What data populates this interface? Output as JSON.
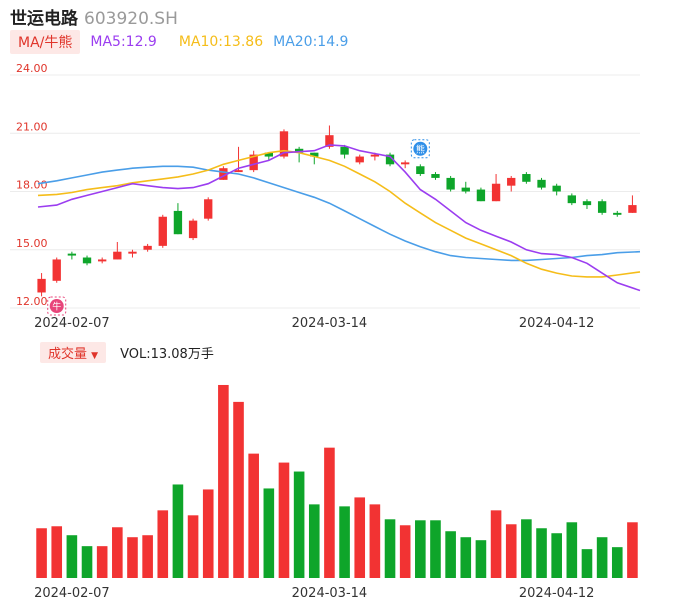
{
  "header": {
    "name": "世运电路",
    "code": "603920.SH"
  },
  "legend": {
    "ma_button": "MA/牛熊",
    "ma5": "MA5:12.9",
    "ma10": "MA10:13.86",
    "ma20": "MA20:14.9"
  },
  "volume": {
    "button": "成交量",
    "label": "VOL:13.08万手"
  },
  "markers": {
    "buy": "牛",
    "sell": "熊"
  },
  "colors": {
    "up": "#f23333",
    "down": "#0ea52a",
    "ma5": "#9b3df0",
    "ma10": "#f5bd1a",
    "ma20": "#4a9ee8",
    "axis_label": "#e0352b"
  },
  "chart_data": [
    {
      "type": "candlestick",
      "y_ticks": [
        "24.00",
        "21.00",
        "18.00",
        "15.00",
        "12.00"
      ],
      "ylim": [
        12,
        24
      ],
      "x_tick_labels": [
        {
          "label": "2024-02-07",
          "index": 2
        },
        {
          "label": "2024-03-14",
          "index": 19
        },
        {
          "label": "2024-04-12",
          "index": 34
        }
      ],
      "candles": [
        {
          "o": 12.8,
          "c": 13.5,
          "h": 13.8,
          "l": 12.6
        },
        {
          "o": 13.4,
          "c": 14.5,
          "h": 14.6,
          "l": 13.3
        },
        {
          "o": 14.8,
          "c": 14.7,
          "h": 14.9,
          "l": 14.5
        },
        {
          "o": 14.6,
          "c": 14.3,
          "h": 14.7,
          "l": 14.2
        },
        {
          "o": 14.4,
          "c": 14.5,
          "h": 14.6,
          "l": 14.3
        },
        {
          "o": 14.5,
          "c": 14.9,
          "h": 15.4,
          "l": 14.5
        },
        {
          "o": 14.8,
          "c": 14.9,
          "h": 15.0,
          "l": 14.6
        },
        {
          "o": 15.0,
          "c": 15.2,
          "h": 15.3,
          "l": 14.9
        },
        {
          "o": 15.2,
          "c": 16.7,
          "h": 16.8,
          "l": 15.1
        },
        {
          "o": 17.0,
          "c": 15.8,
          "h": 17.4,
          "l": 15.8
        },
        {
          "o": 15.6,
          "c": 16.5,
          "h": 16.6,
          "l": 15.5
        },
        {
          "o": 16.6,
          "c": 17.6,
          "h": 17.7,
          "l": 16.5
        },
        {
          "o": 18.6,
          "c": 19.2,
          "h": 19.3,
          "l": 18.6
        },
        {
          "o": 19.0,
          "c": 19.1,
          "h": 20.3,
          "l": 19.0
        },
        {
          "o": 19.1,
          "c": 19.9,
          "h": 20.1,
          "l": 19.0
        },
        {
          "o": 20.0,
          "c": 19.8,
          "h": 20.0,
          "l": 19.6
        },
        {
          "o": 19.8,
          "c": 21.1,
          "h": 21.2,
          "l": 19.7
        },
        {
          "o": 20.2,
          "c": 20.0,
          "h": 20.3,
          "l": 19.5
        },
        {
          "o": 20.0,
          "c": 19.8,
          "h": 20.0,
          "l": 19.4
        },
        {
          "o": 20.3,
          "c": 20.9,
          "h": 21.4,
          "l": 20.2
        },
        {
          "o": 20.3,
          "c": 19.9,
          "h": 20.4,
          "l": 19.7
        },
        {
          "o": 19.5,
          "c": 19.8,
          "h": 19.9,
          "l": 19.4
        },
        {
          "o": 19.8,
          "c": 19.9,
          "h": 20.0,
          "l": 19.6
        },
        {
          "o": 19.9,
          "c": 19.4,
          "h": 20.0,
          "l": 19.3
        },
        {
          "o": 19.4,
          "c": 19.5,
          "h": 19.6,
          "l": 19.2
        },
        {
          "o": 19.3,
          "c": 18.9,
          "h": 19.4,
          "l": 18.8
        },
        {
          "o": 18.9,
          "c": 18.7,
          "h": 19.0,
          "l": 18.6
        },
        {
          "o": 18.7,
          "c": 18.1,
          "h": 18.8,
          "l": 18.0
        },
        {
          "o": 18.2,
          "c": 18.0,
          "h": 18.5,
          "l": 17.9
        },
        {
          "o": 18.1,
          "c": 17.5,
          "h": 18.2,
          "l": 17.5
        },
        {
          "o": 17.5,
          "c": 18.4,
          "h": 18.9,
          "l": 17.5
        },
        {
          "o": 18.3,
          "c": 18.7,
          "h": 18.8,
          "l": 18.0
        },
        {
          "o": 18.9,
          "c": 18.5,
          "h": 19.0,
          "l": 18.4
        },
        {
          "o": 18.6,
          "c": 18.2,
          "h": 18.7,
          "l": 18.1
        },
        {
          "o": 18.3,
          "c": 18.0,
          "h": 18.4,
          "l": 17.8
        },
        {
          "o": 17.8,
          "c": 17.4,
          "h": 17.9,
          "l": 17.3
        },
        {
          "o": 17.5,
          "c": 17.3,
          "h": 17.6,
          "l": 17.1
        },
        {
          "o": 17.5,
          "c": 16.9,
          "h": 17.6,
          "l": 16.8
        },
        {
          "o": 16.9,
          "c": 16.8,
          "h": 17.0,
          "l": 16.7
        },
        {
          "o": 16.9,
          "c": 17.3,
          "h": 17.8,
          "l": 16.9
        }
      ],
      "ma5": [
        17.2,
        17.3,
        17.6,
        17.8,
        18.0,
        18.2,
        18.4,
        18.3,
        18.2,
        18.15,
        18.2,
        18.4,
        18.8,
        19.2,
        19.4,
        19.6,
        20.0,
        20.05,
        20.1,
        20.4,
        20.35,
        20.1,
        19.95,
        19.8,
        19.0,
        18.1,
        17.6,
        17.0,
        16.4,
        16.0,
        15.7,
        15.4,
        15.0,
        14.8,
        14.75,
        14.6,
        14.3,
        13.8,
        13.3,
        12.9
      ],
      "ma10": [
        17.8,
        17.85,
        17.95,
        18.1,
        18.2,
        18.3,
        18.45,
        18.55,
        18.65,
        18.75,
        18.9,
        19.1,
        19.4,
        19.6,
        19.8,
        20.0,
        20.1,
        20.0,
        19.8,
        19.6,
        19.3,
        18.9,
        18.5,
        18.0,
        17.4,
        16.9,
        16.4,
        16.0,
        15.6,
        15.3,
        15.0,
        14.7,
        14.3,
        14.0,
        13.8,
        13.65,
        13.6,
        13.6,
        13.7,
        13.86
      ],
      "ma20": [
        18.4,
        18.55,
        18.7,
        18.85,
        19.0,
        19.1,
        19.2,
        19.25,
        19.3,
        19.3,
        19.25,
        19.1,
        19.0,
        18.9,
        18.7,
        18.45,
        18.2,
        17.95,
        17.7,
        17.4,
        17.0,
        16.6,
        16.2,
        15.8,
        15.45,
        15.15,
        14.9,
        14.7,
        14.6,
        14.55,
        14.5,
        14.45,
        14.45,
        14.5,
        14.55,
        14.6,
        14.7,
        14.75,
        14.85,
        14.9
      ],
      "volume": [
        5.0,
        5.2,
        4.3,
        3.2,
        3.2,
        5.1,
        4.1,
        4.3,
        6.8,
        9.4,
        6.3,
        8.9,
        19.4,
        17.7,
        12.5,
        9.0,
        11.6,
        10.7,
        7.4,
        13.1,
        7.2,
        8.1,
        7.4,
        5.9,
        5.3,
        5.8,
        5.8,
        4.7,
        4.1,
        3.8,
        6.8,
        5.4,
        5.9,
        5.0,
        4.5,
        5.6,
        2.9,
        4.1,
        3.1,
        5.6
      ],
      "markers": [
        {
          "index": 1,
          "kind": "buy",
          "price": 12.1
        },
        {
          "index": 25,
          "kind": "sell",
          "price": 20.2
        }
      ]
    }
  ]
}
